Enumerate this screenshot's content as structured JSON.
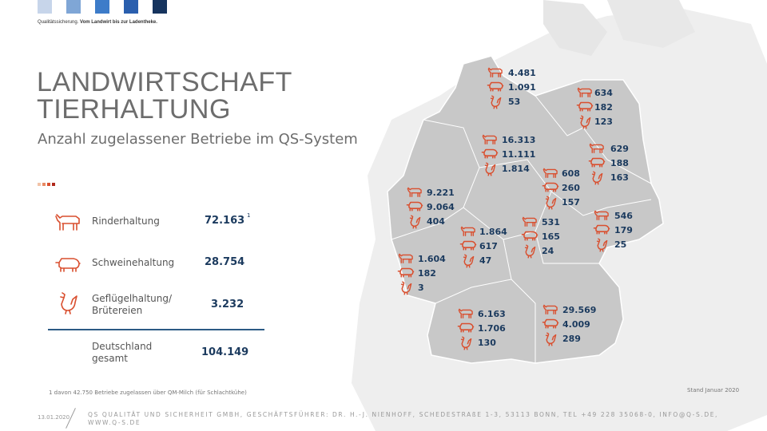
{
  "brand": {
    "squares": [
      "#c7d5ea",
      "#7fa6d6",
      "#3d7cc9",
      "#2a5fae",
      "#16345e"
    ],
    "tagline_normal": "Qualitätssicherung. ",
    "tagline_bold": "Vom Landwirt bis zur Ladentheke."
  },
  "title_line1": "LANDWIRTSCHAFT",
  "title_line2": "TIERHALTUNG",
  "subtitle": "Anzahl zugelassener Betriebe im QS-System",
  "accent_dots": [
    "#f2c3a8",
    "#e88a63",
    "#d94f2f",
    "#b0281a"
  ],
  "icon_color": "#d94f2f",
  "legend": [
    {
      "icon": "cow-icon",
      "label": "Rinderhaltung",
      "value": "72.163",
      "footnote_mark": "1"
    },
    {
      "icon": "pig-icon",
      "label": "Schweinehaltung",
      "value": "28.754"
    },
    {
      "icon": "chicken-icon",
      "label_line1": "Geflügelhaltung/",
      "label_line2": "Brütereien",
      "value": "3.232"
    }
  ],
  "total": {
    "label_line1": "Deutschland",
    "label_line2": "gesamt",
    "value": "104.149"
  },
  "footnote": "1 davon 42.750 Betriebe zugelassen über QM-Milch (für Schlachtkühe)",
  "stand": "Stand Januar 2020",
  "footer": {
    "date": "13.01.2020",
    "text": "QS QUALITÄT UND SICHERHEIT GMBH, GESCHÄFTSFÜHRER: DR. H.-J. NIENHOFF, SCHEDESTRAßE 1-3, 53113 BONN, TEL +49 228 35068-0, INFO@Q-S.DE, WWW.Q-S.DE"
  },
  "regions": [
    {
      "name": "north",
      "cow": "4.481",
      "pig": "1.091",
      "chicken": "53"
    },
    {
      "name": "northeast",
      "cow": "634",
      "pig": "182",
      "chicken": "123"
    },
    {
      "name": "northwest",
      "cow": "16.313",
      "pig": "11.111",
      "chicken": "1.814"
    },
    {
      "name": "east",
      "cow": "629",
      "pig": "188",
      "chicken": "163"
    },
    {
      "name": "center-north",
      "cow": "608",
      "pig": "260",
      "chicken": "157"
    },
    {
      "name": "west",
      "cow": "9.221",
      "pig": "9.064",
      "chicken": "404"
    },
    {
      "name": "center",
      "cow": "531",
      "pig": "165",
      "chicken": "24"
    },
    {
      "name": "southeast-saxony",
      "cow": "546",
      "pig": "179",
      "chicken": "25"
    },
    {
      "name": "hesse",
      "cow": "1.864",
      "pig": "617",
      "chicken": "47"
    },
    {
      "name": "southwest",
      "cow": "1.604",
      "pig": "182",
      "chicken": "3"
    },
    {
      "name": "baden",
      "cow": "6.163",
      "pig": "1.706",
      "chicken": "130"
    },
    {
      "name": "bavaria",
      "cow": "29.569",
      "pig": "4.009",
      "chicken": "289"
    }
  ]
}
